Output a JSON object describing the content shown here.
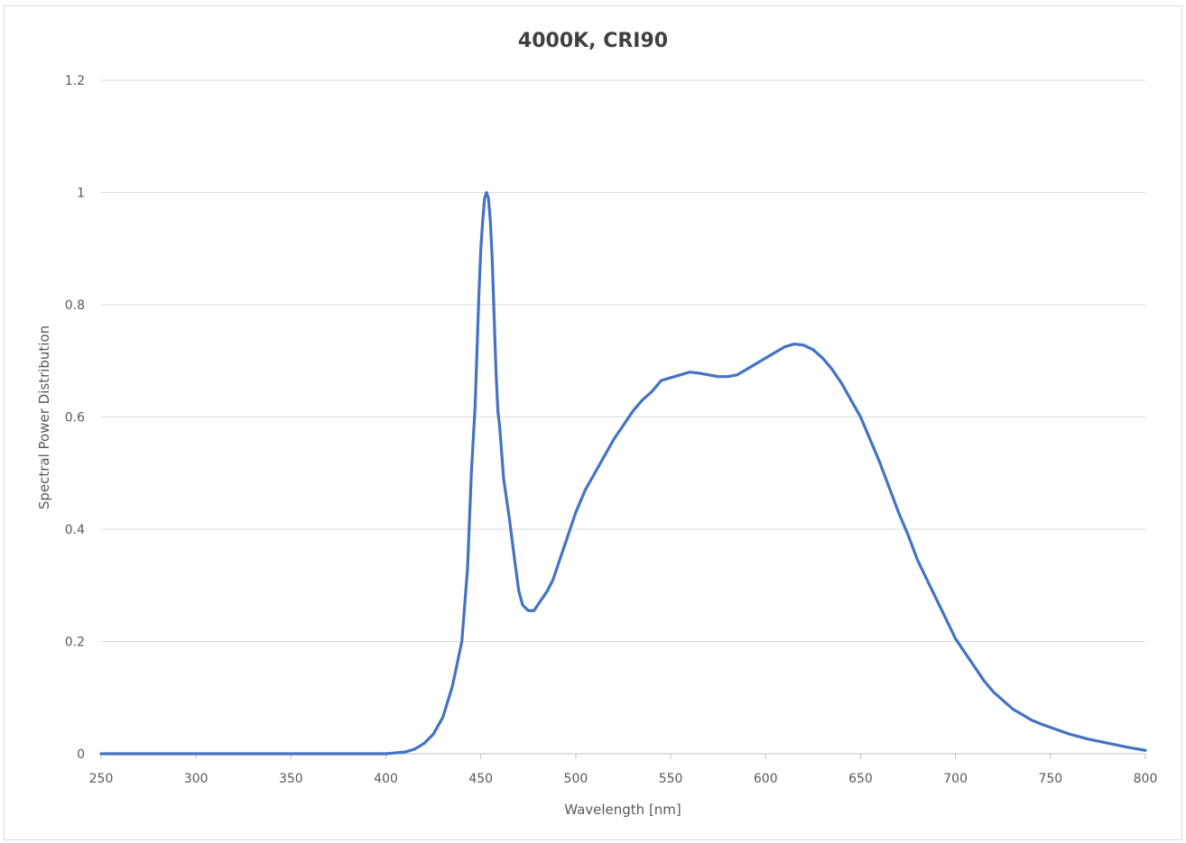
{
  "chart_data": {
    "type": "line",
    "title": "4000K, CRI90",
    "xlabel": "Wavelength [nm]",
    "ylabel": "Spectral Power Distribution",
    "xlim": [
      250,
      800
    ],
    "ylim": [
      0,
      1.2
    ],
    "x_ticks": [
      250,
      300,
      350,
      400,
      450,
      500,
      550,
      600,
      650,
      700,
      750,
      800
    ],
    "y_ticks": [
      0,
      0.2,
      0.4,
      0.6,
      0.8,
      1,
      1.2
    ],
    "grid": "horizontal",
    "legend": "none",
    "series": [
      {
        "color": "#4472C4",
        "x": [
          250,
          300,
          350,
          400,
          410,
          415,
          420,
          425,
          430,
          435,
          440,
          443,
          445,
          447,
          449,
          450,
          451,
          452,
          453,
          454,
          455,
          456,
          457,
          458,
          459,
          460,
          462,
          465,
          468,
          470,
          472,
          475,
          478,
          480,
          483,
          485,
          488,
          490,
          495,
          500,
          505,
          510,
          515,
          520,
          525,
          530,
          535,
          540,
          545,
          550,
          555,
          560,
          565,
          570,
          575,
          580,
          585,
          590,
          595,
          600,
          605,
          610,
          615,
          620,
          625,
          630,
          635,
          640,
          645,
          650,
          655,
          660,
          665,
          670,
          675,
          680,
          685,
          690,
          695,
          700,
          705,
          710,
          715,
          720,
          725,
          730,
          735,
          740,
          745,
          750,
          760,
          770,
          780,
          790,
          800
        ],
        "y": [
          0.0,
          0.0,
          0.0,
          0.0,
          0.003,
          0.008,
          0.018,
          0.035,
          0.065,
          0.12,
          0.2,
          0.33,
          0.5,
          0.62,
          0.82,
          0.9,
          0.95,
          0.99,
          1.0,
          0.99,
          0.95,
          0.88,
          0.78,
          0.68,
          0.61,
          0.58,
          0.49,
          0.42,
          0.34,
          0.29,
          0.265,
          0.255,
          0.255,
          0.265,
          0.28,
          0.29,
          0.31,
          0.33,
          0.38,
          0.43,
          0.47,
          0.5,
          0.53,
          0.56,
          0.585,
          0.61,
          0.63,
          0.645,
          0.665,
          0.67,
          0.675,
          0.68,
          0.678,
          0.675,
          0.672,
          0.672,
          0.675,
          0.685,
          0.695,
          0.705,
          0.715,
          0.725,
          0.73,
          0.728,
          0.72,
          0.705,
          0.685,
          0.66,
          0.63,
          0.6,
          0.56,
          0.52,
          0.475,
          0.43,
          0.39,
          0.345,
          0.31,
          0.275,
          0.24,
          0.205,
          0.18,
          0.155,
          0.13,
          0.11,
          0.095,
          0.08,
          0.07,
          0.06,
          0.053,
          0.047,
          0.035,
          0.026,
          0.019,
          0.012,
          0.006
        ]
      }
    ]
  }
}
